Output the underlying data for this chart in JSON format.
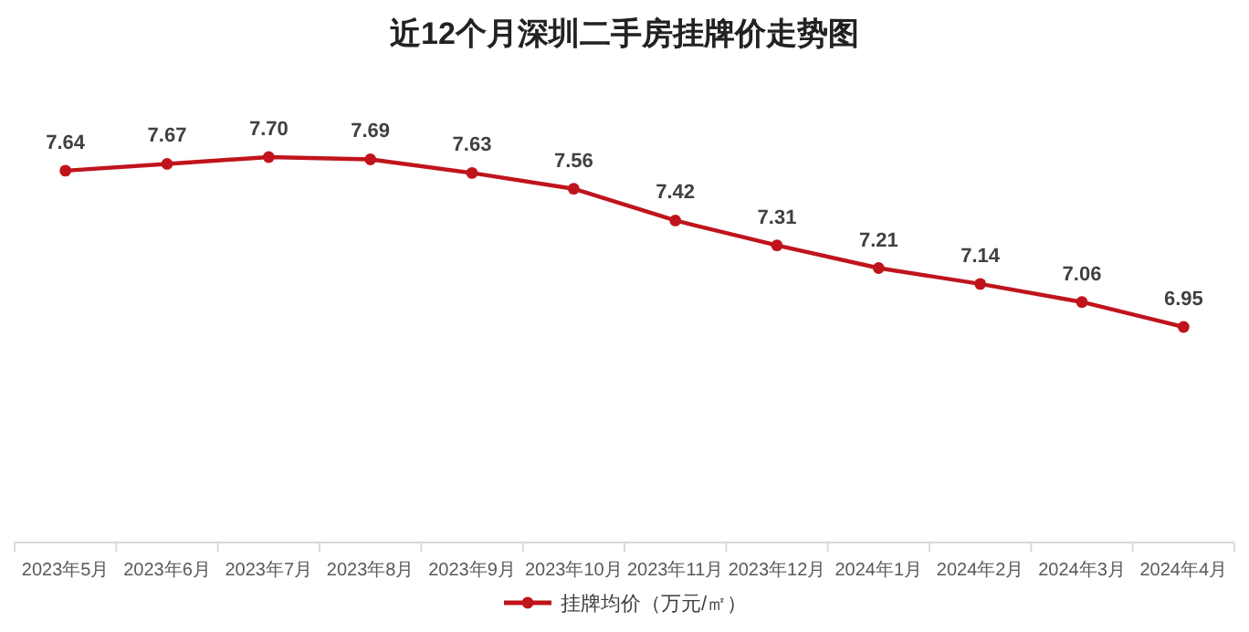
{
  "chart_data": {
    "type": "line",
    "title": "近12个月深圳二手房挂牌价走势图",
    "categories": [
      "2023年5月",
      "2023年6月",
      "2023年7月",
      "2023年8月",
      "2023年9月",
      "2023年10月",
      "2023年11月",
      "2023年12月",
      "2024年1月",
      "2024年2月",
      "2024年3月",
      "2024年4月"
    ],
    "series": [
      {
        "name": "挂牌均价（万元/㎡）",
        "color": "#c0141c",
        "values": [
          7.64,
          7.67,
          7.7,
          7.69,
          7.63,
          7.56,
          7.42,
          7.31,
          7.21,
          7.14,
          7.06,
          6.95
        ],
        "value_labels": [
          "7.64",
          "7.67",
          "7.70",
          "7.69",
          "7.63",
          "7.56",
          "7.42",
          "7.31",
          "7.21",
          "7.14",
          "7.06",
          "6.95"
        ]
      }
    ],
    "marker": "circle",
    "legend": "bottom",
    "grid": false
  }
}
